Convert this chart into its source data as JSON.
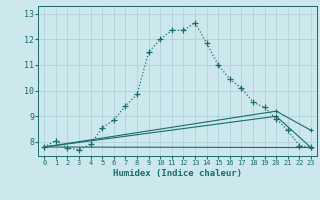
{
  "xlabel": "Humidex (Indice chaleur)",
  "bg_color": "#cce8ed",
  "grid_color": "#aacdd5",
  "line_color": "#1a6b6b",
  "xlim": [
    -0.5,
    23.5
  ],
  "ylim": [
    7.45,
    13.3
  ],
  "yticks": [
    8,
    9,
    10,
    11,
    12,
    13
  ],
  "xticks": [
    0,
    1,
    2,
    3,
    4,
    5,
    6,
    7,
    8,
    9,
    10,
    11,
    12,
    13,
    14,
    15,
    16,
    17,
    18,
    19,
    20,
    21,
    22,
    23
  ],
  "series1_x": [
    0,
    1,
    2,
    3,
    4,
    5,
    6,
    7,
    8,
    9,
    10,
    11,
    12,
    13,
    14,
    15,
    16,
    17,
    18,
    19,
    20,
    21,
    22,
    23
  ],
  "series1_y": [
    7.8,
    8.05,
    7.75,
    7.7,
    7.9,
    8.55,
    8.85,
    9.4,
    9.85,
    11.5,
    12.0,
    12.35,
    12.35,
    12.65,
    11.85,
    11.0,
    10.45,
    10.1,
    9.55,
    9.35,
    8.9,
    8.45,
    7.85,
    7.8
  ],
  "series2_x": [
    0,
    23
  ],
  "series2_y": [
    7.8,
    7.78
  ],
  "series3_x": [
    0,
    20,
    23
  ],
  "series3_y": [
    7.8,
    9.0,
    7.78
  ],
  "series4_x": [
    0,
    20,
    23
  ],
  "series4_y": [
    7.8,
    9.2,
    8.45
  ]
}
